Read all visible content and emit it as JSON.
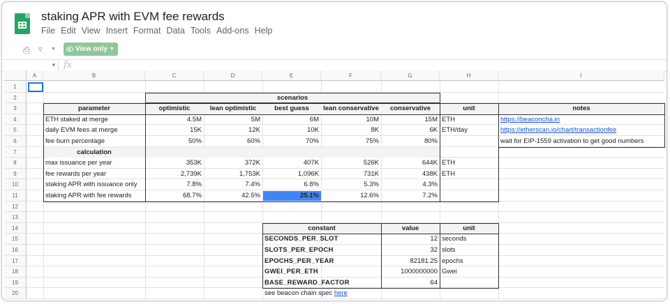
{
  "doc": {
    "title": "staking APR with EVM fee rewards"
  },
  "menu": [
    "File",
    "Edit",
    "View",
    "Insert",
    "Format",
    "Data",
    "Tools",
    "Add-ons",
    "Help"
  ],
  "toolbar": {
    "view_only_label": "View only"
  },
  "formula_bar": {
    "fx": "fx"
  },
  "columns": [
    "A",
    "B",
    "C",
    "D",
    "E",
    "F",
    "G",
    "H",
    "I"
  ],
  "rows": [
    "1",
    "2",
    "3",
    "4",
    "5",
    "6",
    "7",
    "8",
    "9",
    "10",
    "11",
    "12",
    "13",
    "14",
    "15",
    "16",
    "17",
    "18",
    "19",
    "20"
  ],
  "scenarios": {
    "group_label": "scenarios",
    "headers": [
      "parameter",
      "optimistic",
      "lean optimistic",
      "best guess",
      "lean conservative",
      "conservative",
      "unit",
      "notes"
    ],
    "rows": [
      {
        "param": "ETH staked at merge",
        "values": [
          "4.5M",
          "5M",
          "6M",
          "10M",
          "15M"
        ],
        "unit": "ETH",
        "note": "https://beaconcha.in",
        "note_link": true
      },
      {
        "param": "daily EVM fees at merge",
        "values": [
          "15K",
          "12K",
          "10K",
          "8K",
          "6K"
        ],
        "unit": "ETH/day",
        "note": "https://etherscan.io/chart/transactionfee",
        "note_link": true
      },
      {
        "param": "fee burn percentage",
        "values": [
          "50%",
          "60%",
          "70%",
          "75%",
          "80%"
        ],
        "unit": "",
        "note": "wait for EIP-1559 activation to get good numbers",
        "note_link": false
      }
    ],
    "calc_label": "calculation",
    "calc_rows": [
      {
        "param": "max issuance per year",
        "values": [
          "353K",
          "372K",
          "407K",
          "526K",
          "644K"
        ],
        "unit": "ETH"
      },
      {
        "param": "fee rewards per year",
        "values": [
          "2,739K",
          "1,753K",
          "1,096K",
          "731K",
          "438K"
        ],
        "unit": "ETH"
      },
      {
        "param": "staking APR with issuance only",
        "values": [
          "7.8%",
          "7.4%",
          "6.8%",
          "5.3%",
          "4.3%"
        ],
        "unit": ""
      },
      {
        "param": "staking APR with fee rewards",
        "values": [
          "68.7%",
          "42.5%",
          "25.1%",
          "12.6%",
          "7.2%"
        ],
        "unit": ""
      }
    ]
  },
  "constants": {
    "headers": [
      "constant",
      "value",
      "unit"
    ],
    "rows": [
      {
        "name": "SECONDS_PER_SLOT",
        "value": "12",
        "unit": "seconds"
      },
      {
        "name": "SLOTS_PER_EPOCH",
        "value": "32",
        "unit": "slots"
      },
      {
        "name": "EPOCHS_PER_YEAR",
        "value": "82181.25",
        "unit": "epochs"
      },
      {
        "name": "GWEI_PER_ETH",
        "value": "1000000000",
        "unit": "Gwei"
      },
      {
        "name": "BASE_REWARD_FACTOR",
        "value": "64",
        "unit": ""
      }
    ],
    "footnote": "see beacon chain spec",
    "footnote_link": "here"
  },
  "colors": {
    "accent_green": "#23a566",
    "highlight": "#4285f4",
    "link": "#1155cc",
    "selection": "#1a73e8"
  }
}
